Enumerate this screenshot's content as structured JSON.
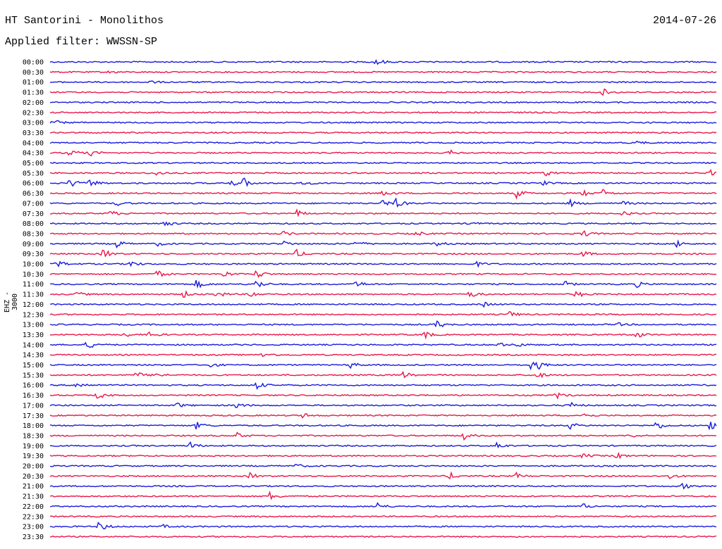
{
  "header": {
    "station": "HT Santorini - Monolithos",
    "date": "2014-07-26",
    "filter": "Applied filter: WWSSN-SP"
  },
  "channel_label": "EHZ - 3000",
  "colors": {
    "blue": "#1a1adc",
    "red": "#e8174a"
  },
  "chart_data": {
    "type": "line",
    "title": "HT Santorini - Monolithos",
    "subtitle": "Applied filter: WWSSN-SP",
    "ylabel": "EHZ - 3000",
    "x_range_minutes": [
      0,
      30
    ],
    "rows": [
      {
        "label": "00:00",
        "color": "blue",
        "events": [
          [
            0.49,
            0.8
          ]
        ]
      },
      {
        "label": "00:30",
        "color": "red",
        "events": [
          [
            0.09,
            0.3
          ]
        ]
      },
      {
        "label": "01:00",
        "color": "blue",
        "events": [
          [
            0.15,
            0.3
          ]
        ]
      },
      {
        "label": "01:30",
        "color": "red",
        "events": [
          [
            0.83,
            0.7
          ]
        ]
      },
      {
        "label": "02:00",
        "color": "blue",
        "events": []
      },
      {
        "label": "02:30",
        "color": "red",
        "events": []
      },
      {
        "label": "03:00",
        "color": "blue",
        "events": [
          [
            0.005,
            0.6
          ]
        ]
      },
      {
        "label": "03:30",
        "color": "red",
        "events": []
      },
      {
        "label": "04:00",
        "color": "blue",
        "events": [
          [
            0.88,
            0.4
          ]
        ]
      },
      {
        "label": "04:30",
        "color": "red",
        "events": [
          [
            0.03,
            0.8
          ],
          [
            0.06,
            0.6
          ],
          [
            0.6,
            0.5
          ]
        ]
      },
      {
        "label": "05:00",
        "color": "blue",
        "events": []
      },
      {
        "label": "05:30",
        "color": "red",
        "events": [
          [
            0.16,
            0.5
          ],
          [
            0.74,
            0.8
          ],
          [
            0.99,
            0.6
          ]
        ]
      },
      {
        "label": "06:00",
        "color": "blue",
        "events": [
          [
            0.03,
            1.0
          ],
          [
            0.06,
            0.9
          ],
          [
            0.27,
            0.7
          ],
          [
            0.29,
            1.0
          ],
          [
            0.38,
            0.4
          ],
          [
            0.74,
            0.4
          ]
        ]
      },
      {
        "label": "06:30",
        "color": "red",
        "events": [
          [
            0.5,
            0.6
          ],
          [
            0.7,
            0.9
          ],
          [
            0.8,
            0.6
          ],
          [
            0.83,
            0.8
          ]
        ]
      },
      {
        "label": "07:00",
        "color": "blue",
        "events": [
          [
            0.1,
            0.5
          ],
          [
            0.5,
            0.8
          ],
          [
            0.52,
            1.0
          ],
          [
            0.78,
            0.7
          ],
          [
            0.86,
            0.5
          ]
        ]
      },
      {
        "label": "07:30",
        "color": "red",
        "events": [
          [
            0.09,
            0.6
          ],
          [
            0.37,
            0.7
          ],
          [
            0.86,
            0.5
          ]
        ]
      },
      {
        "label": "08:00",
        "color": "blue",
        "events": [
          [
            0.17,
            0.7
          ],
          [
            0.63,
            0.4
          ]
        ]
      },
      {
        "label": "08:30",
        "color": "red",
        "events": [
          [
            0.35,
            0.5
          ],
          [
            0.55,
            0.5
          ],
          [
            0.8,
            0.7
          ]
        ]
      },
      {
        "label": "09:00",
        "color": "blue",
        "events": [
          [
            0.1,
            0.8
          ],
          [
            0.16,
            0.5
          ],
          [
            0.35,
            0.6
          ],
          [
            0.46,
            0.7
          ],
          [
            0.58,
            0.5
          ],
          [
            0.94,
            0.7
          ]
        ]
      },
      {
        "label": "09:30",
        "color": "red",
        "events": [
          [
            0.08,
            1.0
          ],
          [
            0.37,
            0.8
          ],
          [
            0.8,
            0.6
          ]
        ]
      },
      {
        "label": "10:00",
        "color": "blue",
        "events": [
          [
            0.01,
            0.9
          ],
          [
            0.12,
            0.7
          ],
          [
            0.64,
            0.5
          ]
        ]
      },
      {
        "label": "10:30",
        "color": "red",
        "events": [
          [
            0.16,
            0.8
          ],
          [
            0.26,
            0.7
          ],
          [
            0.31,
            1.0
          ]
        ]
      },
      {
        "label": "11:00",
        "color": "blue",
        "events": [
          [
            0.22,
            0.9
          ],
          [
            0.31,
            1.0
          ],
          [
            0.46,
            0.7
          ],
          [
            0.77,
            0.8
          ],
          [
            0.88,
            0.6
          ]
        ]
      },
      {
        "label": "11:30",
        "color": "red",
        "events": [
          [
            0.04,
            0.5
          ],
          [
            0.2,
            0.7
          ],
          [
            0.25,
            0.8
          ],
          [
            0.3,
            0.7
          ],
          [
            0.63,
            0.7
          ],
          [
            0.79,
            0.8
          ]
        ]
      },
      {
        "label": "12:00",
        "color": "blue",
        "events": [
          [
            0.65,
            0.5
          ]
        ]
      },
      {
        "label": "12:30",
        "color": "red",
        "events": [
          [
            0.69,
            0.6
          ]
        ]
      },
      {
        "label": "13:00",
        "color": "blue",
        "events": [
          [
            0.58,
            0.9
          ],
          [
            0.85,
            0.4
          ]
        ]
      },
      {
        "label": "13:30",
        "color": "red",
        "events": [
          [
            0.11,
            0.6
          ],
          [
            0.15,
            0.8
          ],
          [
            0.56,
            1.0
          ],
          [
            0.88,
            0.8
          ]
        ]
      },
      {
        "label": "14:00",
        "color": "blue",
        "events": [
          [
            0.056,
            1.0
          ],
          [
            0.67,
            0.6
          ],
          [
            0.7,
            0.5
          ]
        ]
      },
      {
        "label": "14:30",
        "color": "red",
        "events": [
          [
            0.32,
            0.7
          ]
        ]
      },
      {
        "label": "15:00",
        "color": "blue",
        "events": [
          [
            0.24,
            0.5
          ],
          [
            0.45,
            0.8
          ],
          [
            0.72,
            0.9
          ],
          [
            0.73,
            1.0
          ]
        ]
      },
      {
        "label": "15:30",
        "color": "red",
        "events": [
          [
            0.13,
            0.6
          ],
          [
            0.16,
            0.6
          ],
          [
            0.53,
            0.7
          ],
          [
            0.73,
            0.8
          ]
        ]
      },
      {
        "label": "16:00",
        "color": "blue",
        "events": [
          [
            0.04,
            0.9
          ],
          [
            0.31,
            0.8
          ]
        ]
      },
      {
        "label": "16:30",
        "color": "red",
        "events": [
          [
            0.07,
            0.9
          ],
          [
            0.76,
            0.6
          ]
        ]
      },
      {
        "label": "17:00",
        "color": "blue",
        "events": [
          [
            0.19,
            0.5
          ],
          [
            0.28,
            0.6
          ],
          [
            0.78,
            0.7
          ]
        ]
      },
      {
        "label": "17:30",
        "color": "red",
        "events": [
          [
            0.38,
            0.5
          ],
          [
            0.8,
            0.6
          ]
        ]
      },
      {
        "label": "18:00",
        "color": "blue",
        "events": [
          [
            0.22,
            0.8
          ],
          [
            0.78,
            0.7
          ],
          [
            0.91,
            0.9
          ],
          [
            0.99,
            1.0
          ]
        ]
      },
      {
        "label": "18:30",
        "color": "red",
        "events": [
          [
            0.28,
            0.6
          ],
          [
            0.62,
            0.8
          ],
          [
            0.87,
            0.5
          ]
        ]
      },
      {
        "label": "19:00",
        "color": "blue",
        "events": [
          [
            0.21,
            0.8
          ],
          [
            0.67,
            0.8
          ]
        ]
      },
      {
        "label": "19:30",
        "color": "red",
        "events": [
          [
            0.8,
            0.5
          ],
          [
            0.85,
            0.6
          ]
        ]
      },
      {
        "label": "20:00",
        "color": "blue",
        "events": [
          [
            0.37,
            0.4
          ]
        ]
      },
      {
        "label": "20:30",
        "color": "red",
        "events": [
          [
            0.3,
            0.6
          ],
          [
            0.6,
            0.7
          ],
          [
            0.7,
            0.6
          ],
          [
            0.93,
            0.6
          ]
        ]
      },
      {
        "label": "21:00",
        "color": "blue",
        "events": [
          [
            0.95,
            0.6
          ]
        ]
      },
      {
        "label": "21:30",
        "color": "red",
        "events": [
          [
            0.33,
            0.8
          ]
        ]
      },
      {
        "label": "22:00",
        "color": "blue",
        "events": [
          [
            0.49,
            0.9
          ],
          [
            0.8,
            0.5
          ]
        ]
      },
      {
        "label": "22:30",
        "color": "red",
        "events": []
      },
      {
        "label": "23:00",
        "color": "blue",
        "events": [
          [
            0.074,
            1.2
          ],
          [
            0.17,
            0.3
          ]
        ]
      },
      {
        "label": "23:30",
        "color": "red",
        "events": []
      }
    ]
  }
}
